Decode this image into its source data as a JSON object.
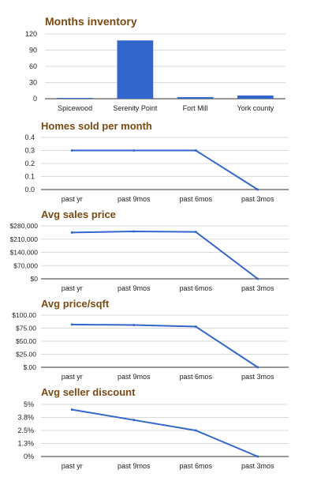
{
  "colors": {
    "series": "#3366cc",
    "grid": "#d9d9d9",
    "axis": "#333333",
    "title": "#7a4a12"
  },
  "chart_data": [
    {
      "type": "bar",
      "title": "Months inventory",
      "categories": [
        "Spicewood",
        "Serenity Point",
        "Fort Mill",
        "York county"
      ],
      "values": [
        1.5,
        108,
        3,
        6
      ],
      "yticks": [
        "120",
        "90",
        "60",
        "30",
        "0"
      ],
      "ylim": [
        0,
        120
      ],
      "grid": true,
      "legend": "none"
    },
    {
      "type": "line",
      "title": "Homes sold per month",
      "categories": [
        "past yr",
        "past 9mos",
        "past 6mos",
        "past 3mos"
      ],
      "values": [
        0.3,
        0.3,
        0.3,
        0
      ],
      "yticks": [
        "0.4",
        "0.3",
        "0.2",
        "0.1",
        "0.0"
      ],
      "ylim": [
        0,
        0.4
      ],
      "grid": true,
      "legend": "none"
    },
    {
      "type": "line",
      "title": "Avg sales price",
      "categories": [
        "past yr",
        "past 9mos",
        "past 6mos",
        "past 3mos"
      ],
      "values": [
        245000,
        251000,
        248000,
        0
      ],
      "yticks": [
        "$280,000",
        "$210,000",
        "$140,000",
        "$70,000",
        "$0"
      ],
      "ylim": [
        0,
        280000
      ],
      "grid": true,
      "legend": "none"
    },
    {
      "type": "line",
      "title": "Avg price/sqft",
      "categories": [
        "past yr",
        "past 9mos",
        "past 6mos",
        "past 3mos"
      ],
      "values": [
        82,
        81,
        78,
        0
      ],
      "yticks": [
        "$100.00",
        "$75.00",
        "$50.00",
        "$25.00",
        "$.00"
      ],
      "ylim": [
        0,
        100
      ],
      "grid": true,
      "legend": "none"
    },
    {
      "type": "line",
      "title": "Avg seller discount",
      "categories": [
        "past yr",
        "past 9mos",
        "past 6mos",
        "past 3mos"
      ],
      "values": [
        4.5,
        3.5,
        2.5,
        0
      ],
      "yticks": [
        "5%",
        "3.8%",
        "2.5%",
        "1.3%",
        "0%"
      ],
      "ylim": [
        0,
        5
      ],
      "grid": true,
      "legend": "none"
    }
  ]
}
